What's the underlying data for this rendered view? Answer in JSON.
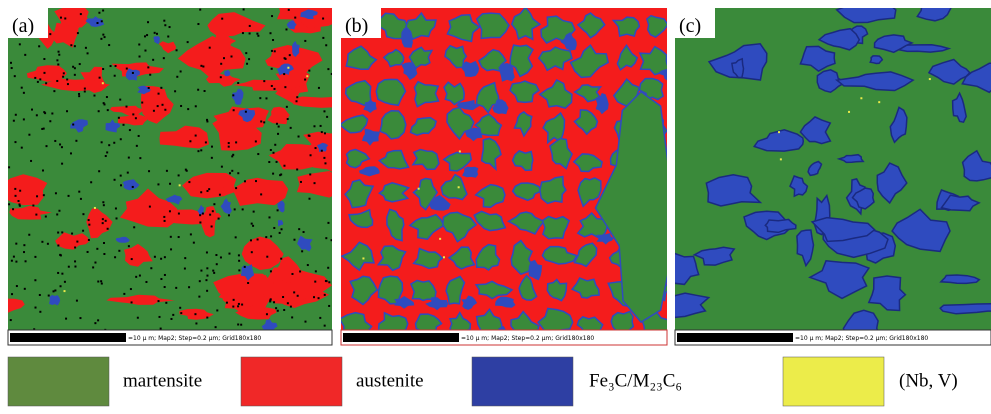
{
  "panels": [
    {
      "label": "(a)",
      "scale_text": "=10 μ m; Map2; Step=0.2 μm; Grid180x180"
    },
    {
      "label": "(b)",
      "scale_text": "=10 μ m; Map2; Step=0.2 μm; Grid180x180"
    },
    {
      "label": "(c)",
      "scale_text": "=10 μ m; Map2; Step=0.2 μm; Grid180x180"
    }
  ],
  "legend": [
    {
      "label": "martensite"
    },
    {
      "label": "austenite"
    },
    {
      "label": "Fe₃C/M₂₃C₆"
    },
    {
      "label": "(Nb, V)"
    }
  ]
}
